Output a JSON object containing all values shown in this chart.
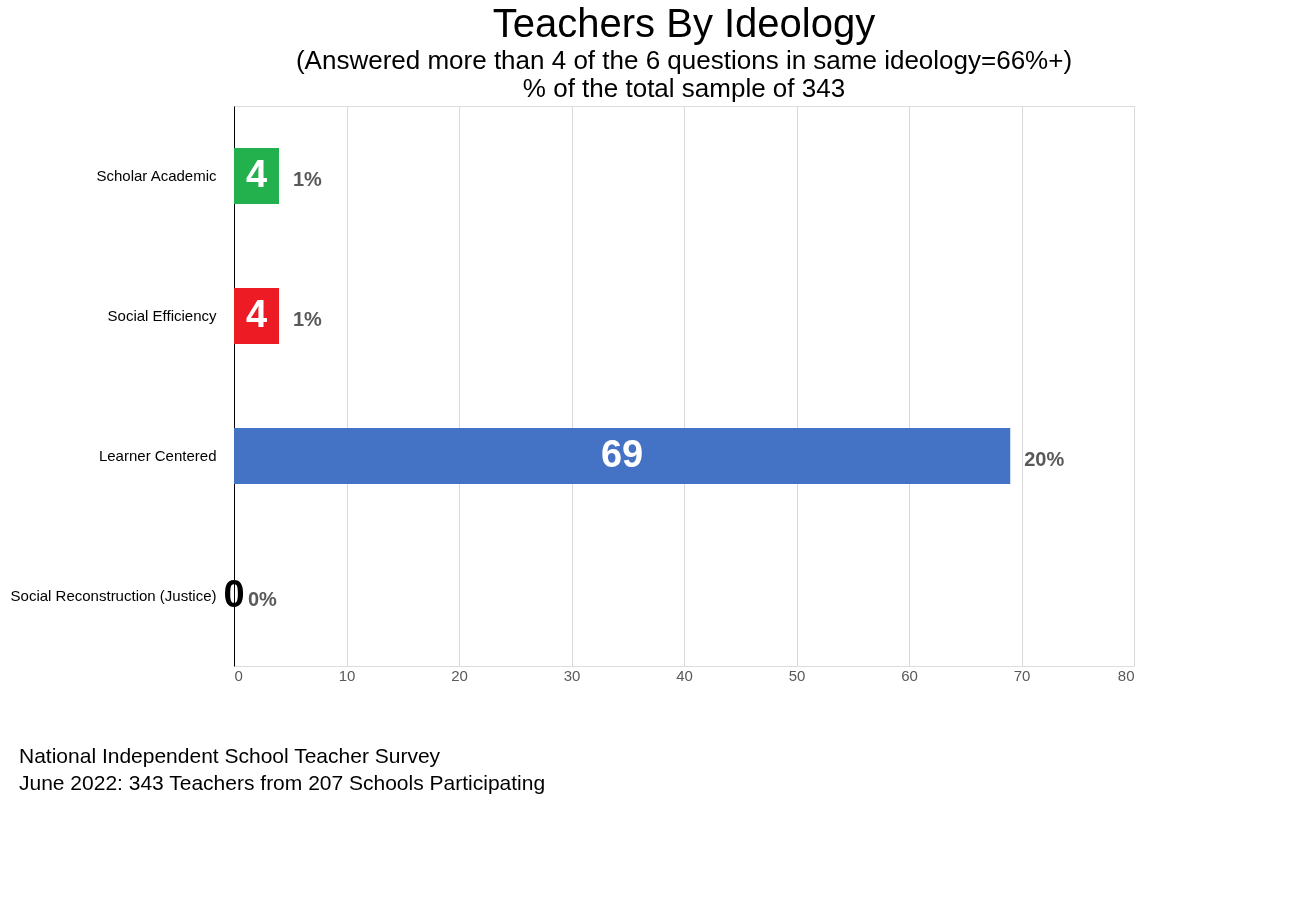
{
  "chart_data": {
    "type": "bar",
    "orientation": "horizontal",
    "title": "Teachers By Ideology",
    "subtitle": "(Answered more than 4 of the 6 questions in same ideology=66%+)\n% of the total sample of 343",
    "categories": [
      "Scholar Academic",
      "Social Efficiency",
      "Learner Centered",
      "Social Reconstruction (Justice)"
    ],
    "values": [
      4,
      4,
      69,
      0
    ],
    "colors": [
      "#22b14c",
      "#ed1c24",
      "#4472c4",
      "#ed7d31"
    ],
    "data_labels": true,
    "xlim": [
      0,
      80
    ],
    "xticks": [
      0,
      10,
      20,
      30,
      40,
      50,
      60,
      70,
      80
    ],
    "grid": "x",
    "annotations": [
      {
        "text": "1%",
        "x": 4,
        "y": "Scholar Academic"
      },
      {
        "text": "1%",
        "x": 4,
        "y": "Social Efficiency"
      },
      {
        "text": "20%",
        "x": 69,
        "y": "Learner Centered"
      },
      {
        "text": "0%",
        "x": 0,
        "y": "Social Reconstruction (Justice)"
      },
      "National Independent School Teacher Survey",
      "June 2022: 343 Teachers from 207 Schools Participating"
    ]
  }
}
